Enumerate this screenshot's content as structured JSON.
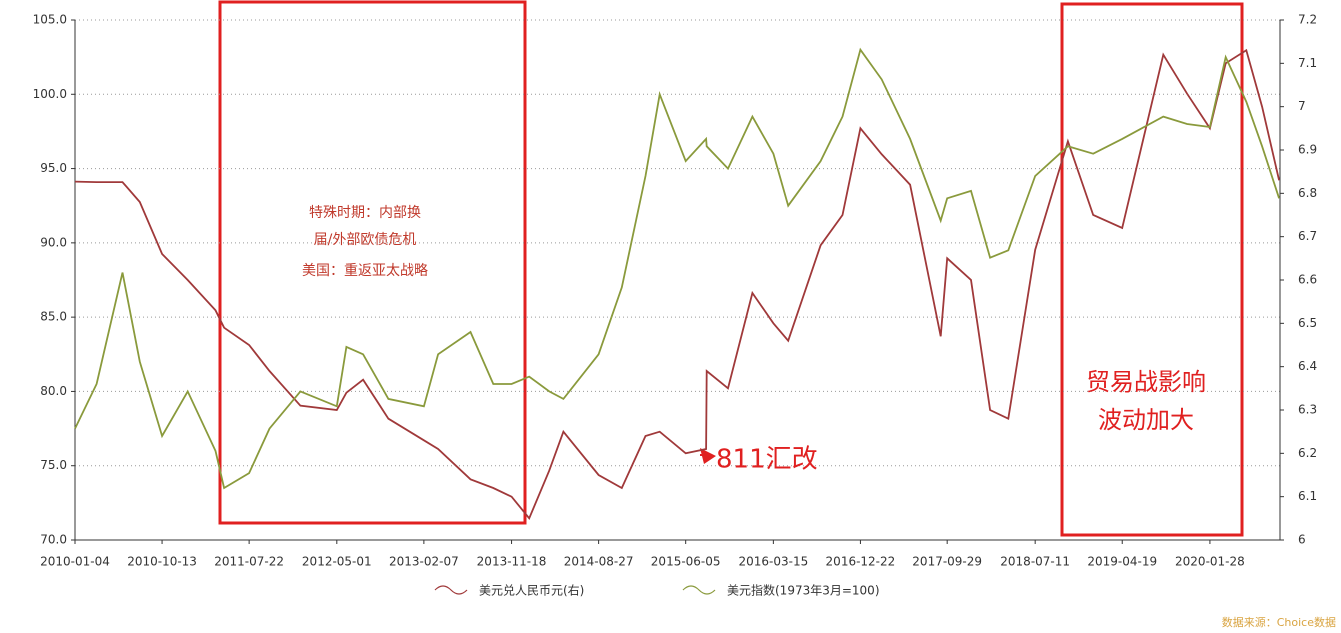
{
  "chart_data": {
    "type": "line",
    "x": [
      "2010-01-04",
      "2010-03-15",
      "2010-06-07",
      "2010-08-02",
      "2010-10-13",
      "2011-01-04",
      "2011-04-04",
      "2011-05-02",
      "2011-07-22",
      "2011-09-26",
      "2012-01-04",
      "2012-05-01",
      "2012-06-01",
      "2012-07-25",
      "2012-10-15",
      "2013-02-07",
      "2013-03-25",
      "2013-07-08",
      "2013-09-20",
      "2013-11-18",
      "2014-01-14",
      "2014-03-20",
      "2014-05-05",
      "2014-08-27",
      "2014-11-10",
      "2015-01-26",
      "2015-03-13",
      "2015-06-05",
      "2015-08-10",
      "2015-08-12",
      "2015-10-20",
      "2016-01-07",
      "2016-03-15",
      "2016-05-02",
      "2016-08-15",
      "2016-10-25",
      "2016-12-22",
      "2017-03-01",
      "2017-06-01",
      "2017-09-08",
      "2017-09-29",
      "2017-12-15",
      "2018-02-15",
      "2018-04-15",
      "2018-07-11",
      "2018-10-25",
      "2019-01-15",
      "2019-04-19",
      "2019-08-30",
      "2019-11-15",
      "2020-01-28",
      "2020-03-19",
      "2020-05-25",
      "2020-07-15",
      "2020-09-08"
    ],
    "series": [
      {
        "name": "美元兑人民币元(右)",
        "color": "#a0393a",
        "axis": "y2",
        "values": [
          6.827,
          6.826,
          6.826,
          6.78,
          6.66,
          6.6,
          6.53,
          6.49,
          6.45,
          6.39,
          6.31,
          6.3,
          6.34,
          6.37,
          6.28,
          6.23,
          6.21,
          6.14,
          6.12,
          6.1,
          6.05,
          6.16,
          6.25,
          6.15,
          6.12,
          6.24,
          6.25,
          6.2,
          6.21,
          6.39,
          6.35,
          6.57,
          6.5,
          6.46,
          6.68,
          6.75,
          6.95,
          6.89,
          6.82,
          6.47,
          6.65,
          6.6,
          6.3,
          6.28,
          6.67,
          6.92,
          6.75,
          6.72,
          7.12,
          7.03,
          6.95,
          7.1,
          7.13,
          7.0,
          6.83
        ]
      },
      {
        "name": "美元指数(1973年3月=100)",
        "color": "#8a9a3c",
        "values": [
          77.5,
          80.5,
          88,
          82,
          77,
          80,
          76,
          73.5,
          74.5,
          77.5,
          80,
          79,
          83,
          82.5,
          79.5,
          79,
          82.5,
          84,
          80.5,
          80.5,
          81,
          80,
          79.5,
          82.5,
          87,
          94.5,
          100,
          95.5,
          97,
          96.5,
          95,
          98.5,
          96,
          92.5,
          95.5,
          98.5,
          103,
          101,
          97,
          91.5,
          93,
          93.5,
          89,
          89.5,
          94.5,
          96.5,
          96,
          97,
          98.5,
          98,
          97.8,
          102.5,
          99.5,
          96.5,
          93
        ]
      }
    ],
    "xlim": [
      "2010-01-04",
      "2020-09-11"
    ],
    "xticks": [
      "2010-01-04",
      "2010-10-13",
      "2011-07-22",
      "2012-05-01",
      "2013-02-07",
      "2013-11-18",
      "2014-08-27",
      "2015-06-05",
      "2016-03-15",
      "2016-12-22",
      "2017-09-29",
      "2018-07-11",
      "2019-04-19",
      "2020-01-28"
    ],
    "ylim": [
      70,
      105
    ],
    "yticks": [
      {
        "value": 70,
        "label": "70.0"
      },
      {
        "value": 75,
        "label": "75.0"
      },
      {
        "value": 80,
        "label": "80.0"
      },
      {
        "value": 85,
        "label": "85.0"
      },
      {
        "value": 90,
        "label": "90.0"
      },
      {
        "value": 95,
        "label": "95.0"
      },
      {
        "value": 100,
        "label": "100.0"
      },
      {
        "value": 105,
        "label": "105.0"
      }
    ],
    "y2lim": [
      6,
      7.2
    ],
    "y2ticks": [
      6,
      6.1,
      6.2,
      6.3,
      6.4,
      6.5,
      6.6,
      6.7,
      6.8,
      6.9,
      7,
      7.1,
      7.2
    ],
    "grid": true,
    "annotations": [
      "特殊时期：内部换",
      "届/外部欧债危机",
      "美国：重返亚太战略",
      "811汇改",
      "贸易战影响",
      "波动加大"
    ],
    "source": "数据来源：Choice数据"
  }
}
